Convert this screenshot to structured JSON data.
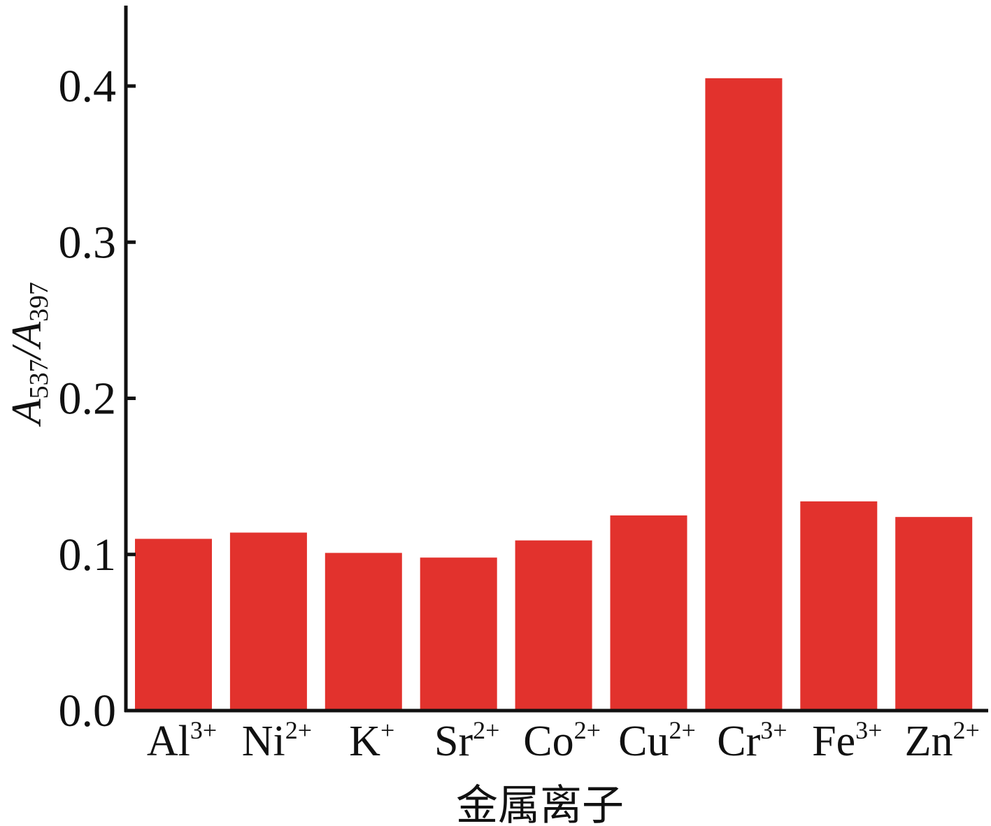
{
  "chart_data": {
    "type": "bar",
    "categories": [
      {
        "base": "Al",
        "charge": "3+"
      },
      {
        "base": "Ni",
        "charge": "2+"
      },
      {
        "base": "K",
        "charge": "+"
      },
      {
        "base": "Sr",
        "charge": "2+"
      },
      {
        "base": "Co",
        "charge": "2+"
      },
      {
        "base": "Cu",
        "charge": "2+"
      },
      {
        "base": "Cr",
        "charge": "3+"
      },
      {
        "base": "Fe",
        "charge": "3+"
      },
      {
        "base": "Zn",
        "charge": "2+"
      }
    ],
    "values": [
      0.11,
      0.114,
      0.101,
      0.098,
      0.109,
      0.125,
      0.405,
      0.134,
      0.124
    ],
    "xlabel": "金属离子",
    "ylabel": {
      "italic_a": "A",
      "sub1": "537",
      "slash": "/",
      "italic_b": "A",
      "sub2": "397"
    },
    "ylim": [
      0,
      0.45
    ],
    "yticks": [
      0.0,
      0.1,
      0.2,
      0.3,
      0.4
    ],
    "ytick_labels": [
      "0.0",
      "0.1",
      "0.2",
      "0.3",
      "0.4"
    ],
    "bar_color": "#e2322d",
    "grid": false
  }
}
